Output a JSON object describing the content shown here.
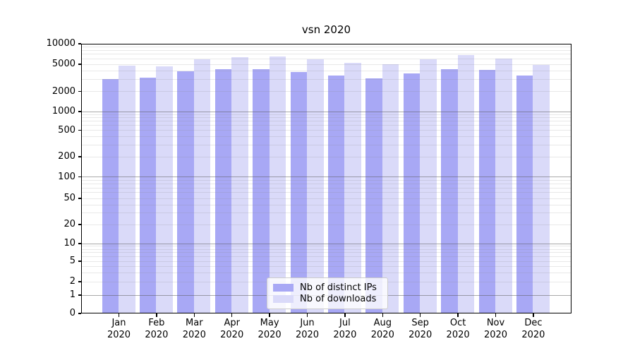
{
  "chart_data": {
    "type": "bar",
    "title": "vsn 2020",
    "yscale": "symlog",
    "ylim": [
      0,
      10000
    ],
    "grid": "both",
    "legend_position": "lower center",
    "year_label": "2020",
    "months": [
      "Jan",
      "Feb",
      "Mar",
      "Apr",
      "May",
      "Jun",
      "Jul",
      "Aug",
      "Sep",
      "Oct",
      "Nov",
      "Dec"
    ],
    "yticks": [
      0,
      1,
      2,
      5,
      10,
      20,
      50,
      100,
      200,
      500,
      1000,
      2000,
      5000,
      10000
    ],
    "series": [
      {
        "name": "Nb of distinct IPs",
        "color": "#a8a8f5",
        "values": [
          3050,
          3150,
          3900,
          4200,
          4250,
          3850,
          3400,
          3100,
          3700,
          4250,
          4150,
          3400
        ]
      },
      {
        "name": "Nb of downloads",
        "color": "#dadaf9",
        "values": [
          4800,
          4650,
          5850,
          6400,
          6500,
          5900,
          5300,
          5000,
          5950,
          6900,
          6100,
          4900
        ]
      }
    ]
  }
}
